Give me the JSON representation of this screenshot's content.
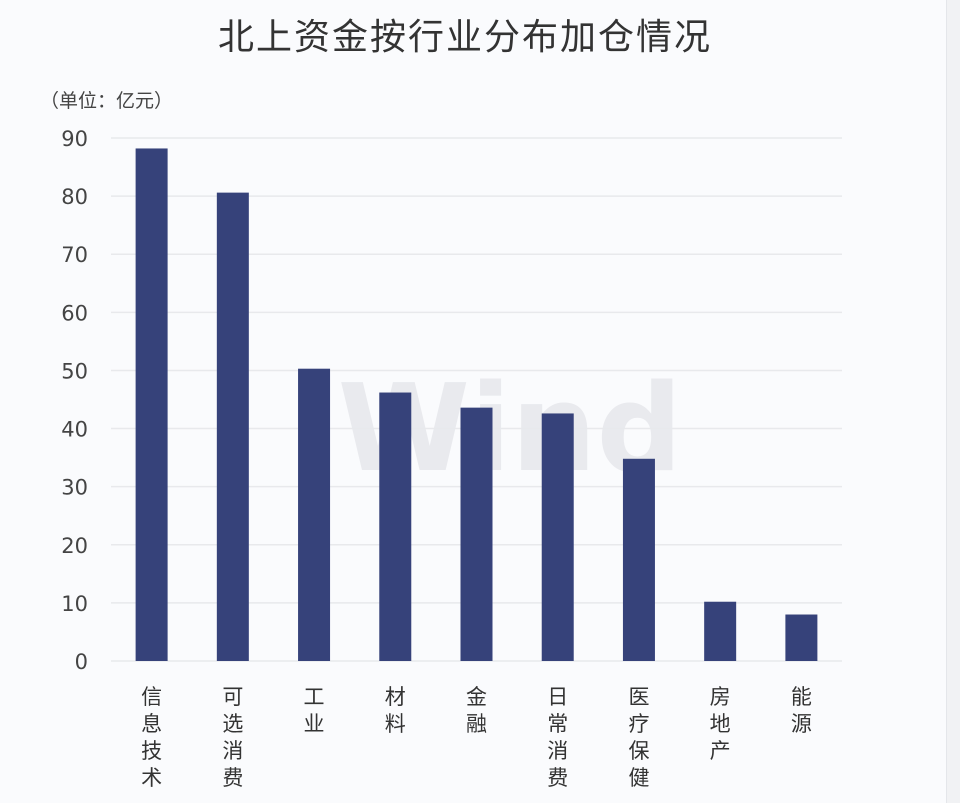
{
  "chart_data": {
    "type": "bar",
    "title": "北上资金按行业分布加仓情况",
    "unit_label": "（单位：亿元）",
    "categories": [
      "信息技术",
      "可选消费",
      "工业",
      "材料",
      "金融",
      "日常消费",
      "医疗保健",
      "房地产",
      "能源"
    ],
    "values": [
      88.2,
      80.6,
      50.3,
      46.2,
      43.6,
      42.6,
      34.8,
      10.2,
      8.0
    ],
    "ylim": [
      0,
      90
    ],
    "yticks": [
      0,
      10,
      20,
      30,
      40,
      50,
      60,
      70,
      80,
      90
    ],
    "grid": true,
    "bar_color": "#36427a",
    "watermark": "Wind"
  }
}
